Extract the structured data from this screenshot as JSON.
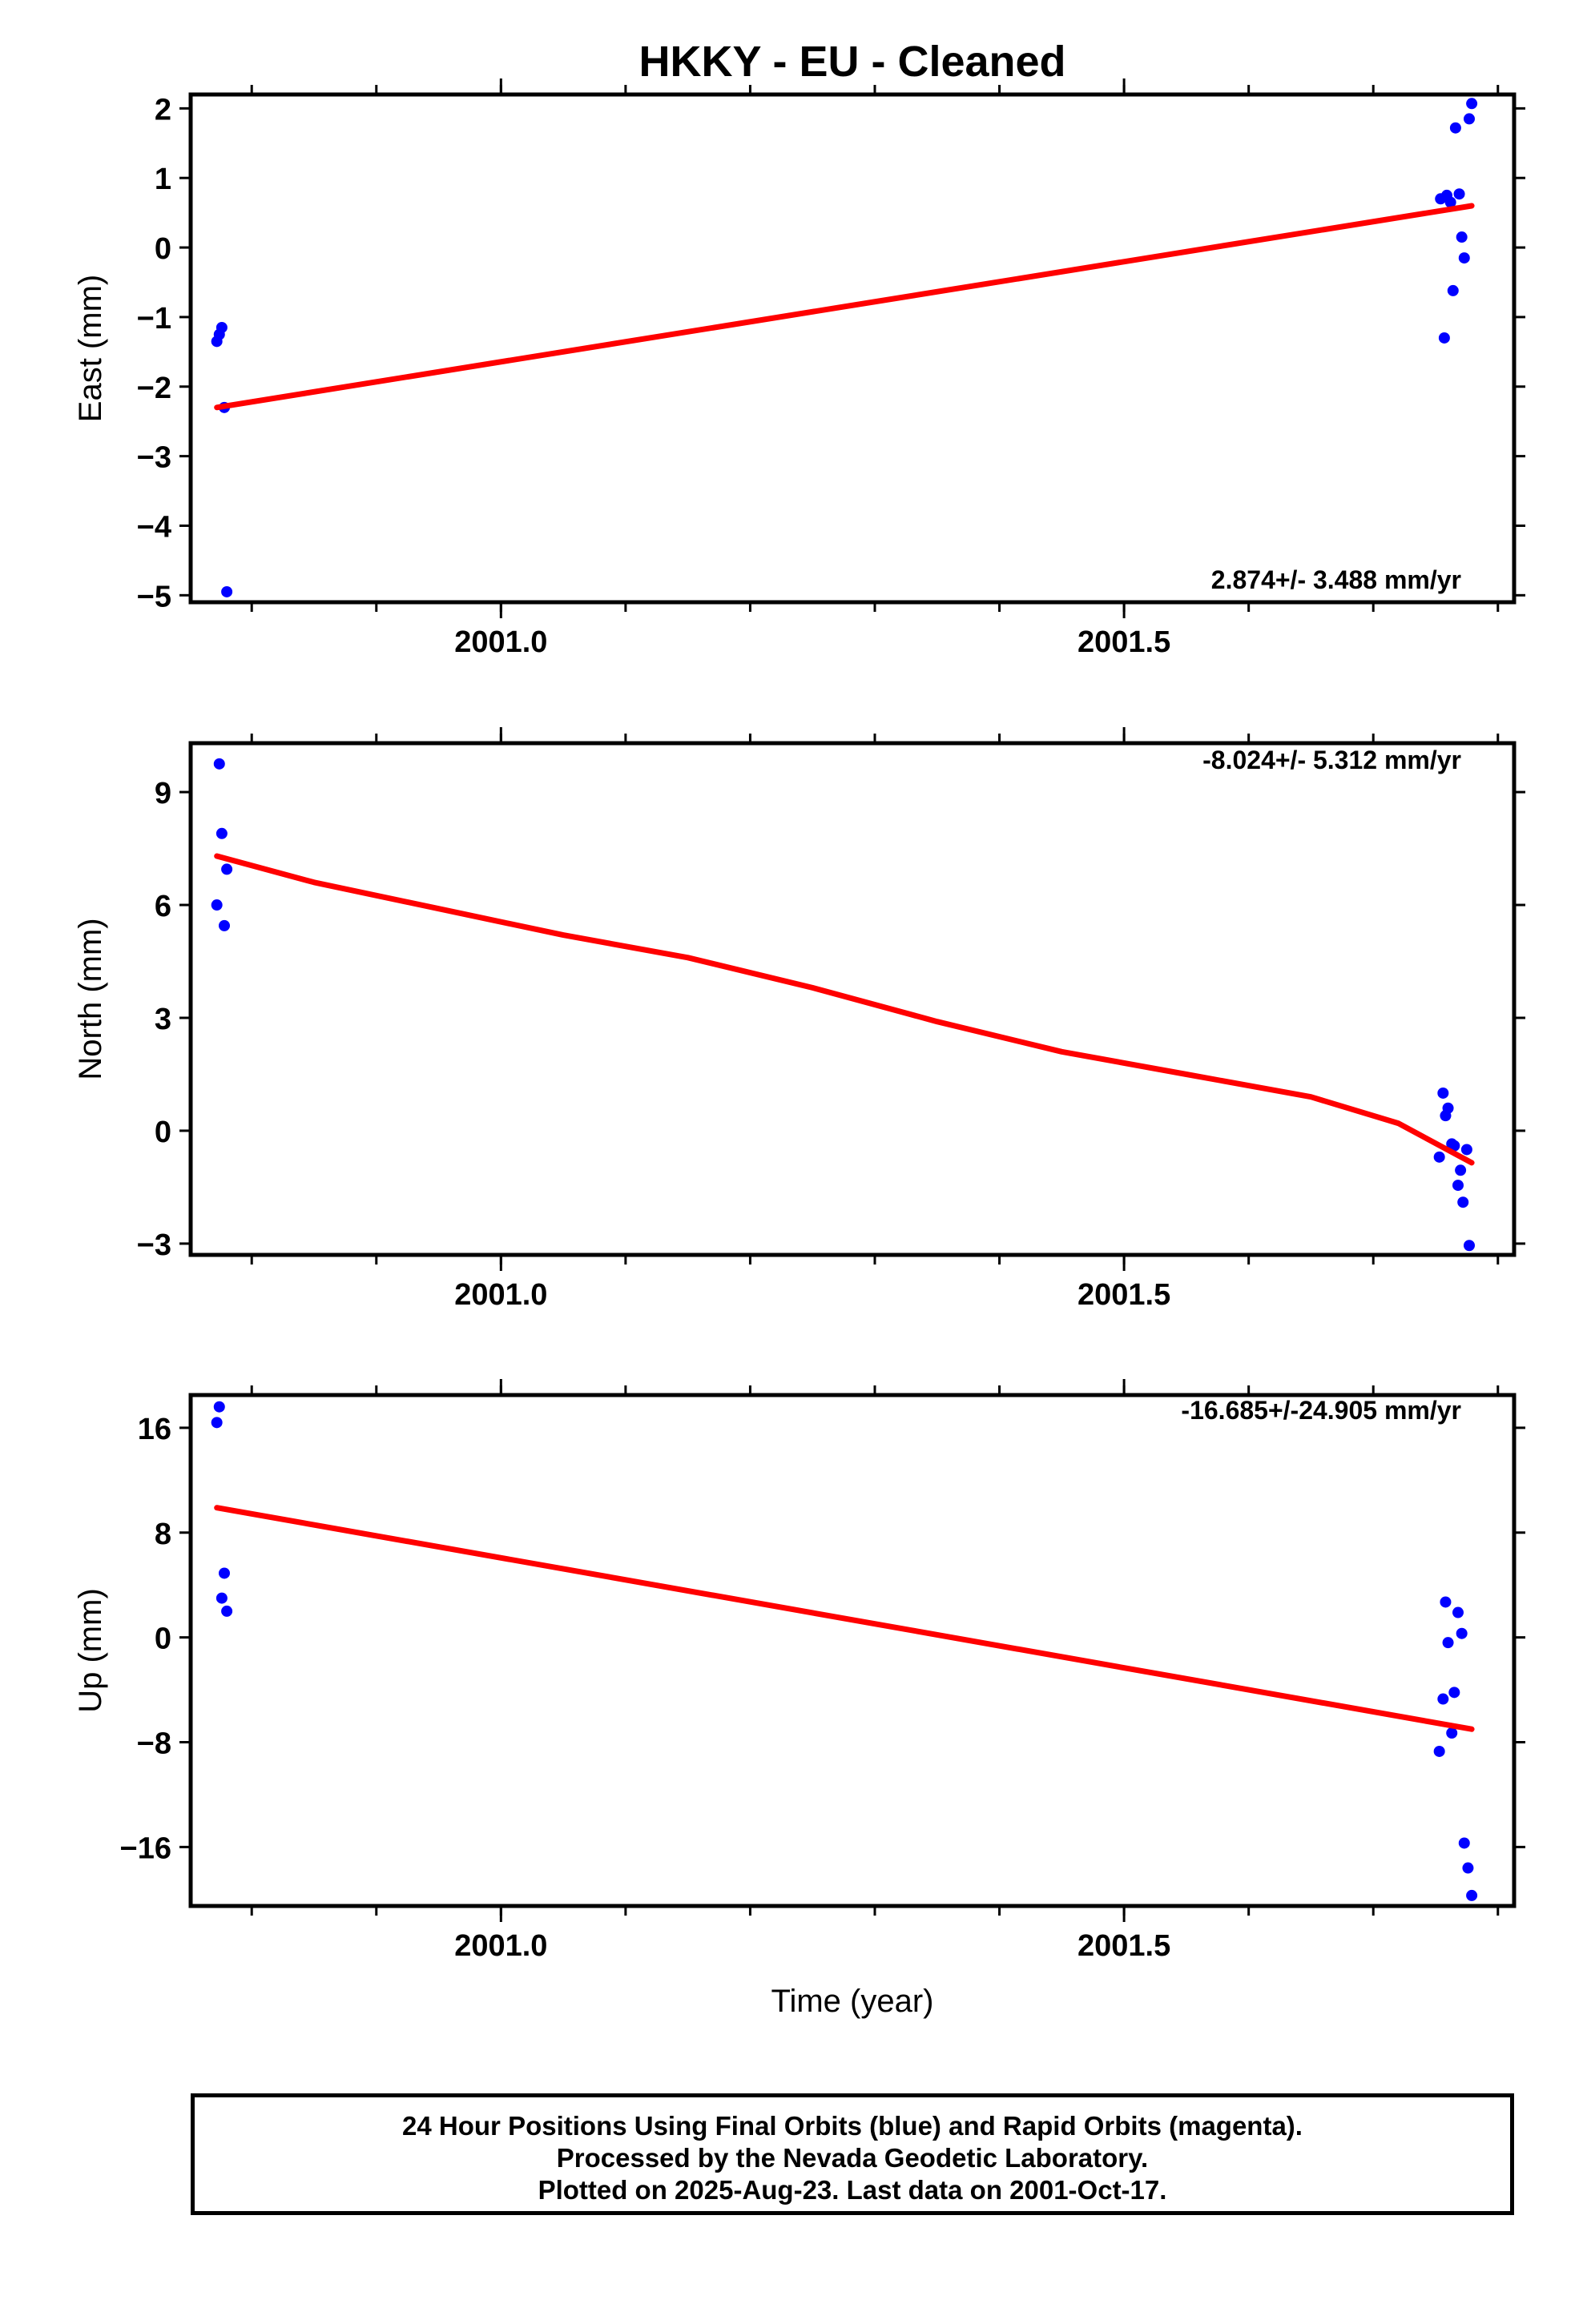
{
  "title": "HKKY  - EU - Cleaned",
  "footer": {
    "lines": [
      "24 Hour Positions Using Final Orbits (blue) and Rapid Orbits (magenta).",
      "Processed by the Nevada Geodetic Laboratory.",
      "Plotted on 2025-Aug-23. Last data on 2001-Oct-17."
    ]
  },
  "colors": {
    "points": "#0000ff",
    "trend": "#ff0000",
    "axes": "#000000"
  },
  "chart_data": [
    {
      "type": "scatter",
      "ylabel": "East (mm)",
      "xlabel": "",
      "rate_label": "2.874+/- 3.488 mm/yr",
      "xlim": [
        2000.751,
        2001.813
      ],
      "ylim": [
        -5.1,
        2.2
      ],
      "x_ticks": [
        2001.0,
        2001.5
      ],
      "x_tick_labels": [
        "2001.0",
        "2001.5"
      ],
      "y_ticks": [
        -5,
        -4,
        -3,
        -2,
        -1,
        0,
        1,
        2
      ],
      "y_tick_labels": [
        "−5",
        "−4",
        "−3",
        "−2",
        "−1",
        "0",
        "1",
        "2"
      ],
      "series": [
        {
          "kind": "points",
          "x": [
            2000.772,
            2000.774,
            2000.776,
            2000.778,
            2000.78,
            2001.754,
            2001.757,
            2001.759,
            2001.762,
            2001.764,
            2001.766,
            2001.769,
            2001.771,
            2001.773,
            2001.777
          ],
          "y": [
            -1.35,
            -1.25,
            -1.15,
            -2.3,
            -4.95,
            0.7,
            -1.3,
            0.75,
            0.65,
            -0.62,
            1.72,
            0.77,
            0.15,
            -0.15,
            1.85
          ]
        },
        {
          "kind": "points",
          "x": [
            2001.779
          ],
          "y": [
            2.07
          ]
        },
        {
          "kind": "trend",
          "x": [
            2000.772,
            2001.779
          ],
          "y": [
            -2.3,
            0.6
          ]
        }
      ]
    },
    {
      "type": "scatter",
      "ylabel": "North (mm)",
      "xlabel": "",
      "rate_label": "-8.024+/- 5.312 mm/yr",
      "xlim": [
        2000.751,
        2001.813
      ],
      "ylim": [
        -3.3,
        10.3
      ],
      "x_ticks": [
        2001.0,
        2001.5
      ],
      "x_tick_labels": [
        "2001.0",
        "2001.5"
      ],
      "y_ticks": [
        -3,
        0,
        3,
        6,
        9
      ],
      "y_tick_labels": [
        "−3",
        "0",
        "3",
        "6",
        "9"
      ],
      "series": [
        {
          "kind": "points",
          "x": [
            2000.772,
            2000.774,
            2000.776,
            2000.778,
            2000.78,
            2001.753,
            2001.756,
            2001.758,
            2001.76,
            2001.763,
            2001.765,
            2001.768,
            2001.77,
            2001.772,
            2001.775,
            2001.777
          ],
          "y": [
            6.0,
            9.75,
            7.9,
            5.45,
            6.95,
            -0.7,
            1.0,
            0.4,
            0.6,
            -0.35,
            -0.4,
            -1.45,
            -1.05,
            -1.9,
            -0.5,
            -3.05
          ]
        },
        {
          "kind": "trend",
          "x": [
            2000.772,
            2000.85,
            2000.95,
            2001.05,
            2001.15,
            2001.25,
            2001.35,
            2001.45,
            2001.55,
            2001.65,
            2001.72,
            2001.779
          ],
          "y": [
            7.3,
            6.6,
            5.9,
            5.2,
            4.6,
            3.8,
            2.9,
            2.1,
            1.5,
            0.9,
            0.2,
            -0.85
          ]
        }
      ]
    },
    {
      "type": "scatter",
      "ylabel": "Up (mm)",
      "xlabel": "Time (year)",
      "rate_label": "-16.685+/-24.905 mm/yr",
      "xlim": [
        2000.751,
        2001.813
      ],
      "ylim": [
        -20.5,
        18.5
      ],
      "x_ticks": [
        2001.0,
        2001.5
      ],
      "x_tick_labels": [
        "2001.0",
        "2001.5"
      ],
      "y_ticks": [
        -16,
        -8,
        0,
        8,
        16
      ],
      "y_tick_labels": [
        "−16",
        "−8",
        "0",
        "8",
        "16"
      ],
      "series": [
        {
          "kind": "points",
          "x": [
            2000.772,
            2000.774,
            2000.776,
            2000.778,
            2000.78,
            2001.753,
            2001.756,
            2001.758,
            2001.76,
            2001.763,
            2001.765,
            2001.768,
            2001.771,
            2001.773,
            2001.776,
            2001.779
          ],
          "y": [
            16.4,
            17.6,
            3.0,
            4.9,
            2.0,
            -8.7,
            -4.7,
            2.7,
            -0.4,
            -7.3,
            -4.2,
            1.9,
            0.3,
            -15.7,
            -17.6,
            -19.7
          ]
        },
        {
          "kind": "trend",
          "x": [
            2000.772,
            2001.779
          ],
          "y": [
            9.9,
            -7.0
          ]
        }
      ]
    }
  ]
}
